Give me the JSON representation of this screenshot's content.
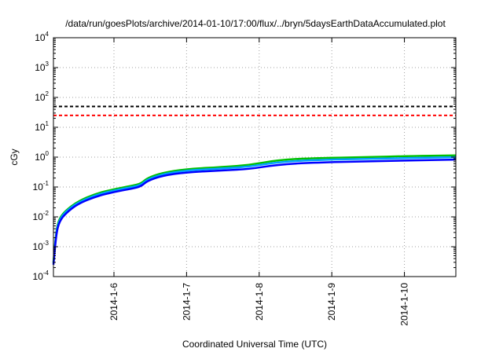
{
  "chart_data": {
    "type": "line",
    "title": "/data/run/goesPlots/archive/2014-01-10/17:00/flux/../bryn/5daysEarthDataAccumulated.plot",
    "xlabel": "Coordinated Universal Time (UTC)",
    "ylabel": "cGy",
    "x_axis": {
      "range": [
        "2014-01-05 04:00",
        "2014-01-10 17:00"
      ],
      "ticks": [
        "2014-1-6",
        "2014-1-7",
        "2014-1-8",
        "2014-1-9",
        "2014-1-10"
      ]
    },
    "y_axis": {
      "scale": "log",
      "range": [
        0.0001,
        10000
      ],
      "ticks": [
        {
          "base": "10",
          "exp": "-4",
          "value": 0.0001
        },
        {
          "base": "10",
          "exp": "-3",
          "value": 0.001
        },
        {
          "base": "10",
          "exp": "-2",
          "value": 0.01
        },
        {
          "base": "10",
          "exp": "-1",
          "value": 0.1
        },
        {
          "base": "10",
          "exp": "0",
          "value": 1
        },
        {
          "base": "10",
          "exp": "1",
          "value": 10
        },
        {
          "base": "10",
          "exp": "2",
          "value": 100
        },
        {
          "base": "10",
          "exp": "3",
          "value": 1000
        },
        {
          "base": "10",
          "exp": "4",
          "value": 10000
        }
      ]
    },
    "grid": true,
    "legend": "none",
    "reference_lines": [
      {
        "value": 50,
        "color": "#000000",
        "style": "dashed"
      },
      {
        "value": 25,
        "color": "#ff0000",
        "style": "dashed"
      }
    ],
    "series": [
      {
        "color": "#00c000",
        "points": [
          [
            "2014-01-05 04:00",
            0.0003
          ],
          [
            "2014-01-05 05:00",
            0.004
          ],
          [
            "2014-01-05 06:00",
            0.009
          ],
          [
            "2014-01-05 08:00",
            0.016
          ],
          [
            "2014-01-05 12:00",
            0.033
          ],
          [
            "2014-01-05 18:00",
            0.06
          ],
          [
            "2014-01-06 00:00",
            0.085
          ],
          [
            "2014-01-06 06:00",
            0.11
          ],
          [
            "2014-01-06 09:00",
            0.13
          ],
          [
            "2014-01-06 11:00",
            0.2
          ],
          [
            "2014-01-06 16:00",
            0.3
          ],
          [
            "2014-01-07 00:00",
            0.4
          ],
          [
            "2014-01-07 12:00",
            0.47
          ],
          [
            "2014-01-07 21:00",
            0.55
          ],
          [
            "2014-01-08 06:00",
            0.8
          ],
          [
            "2014-01-08 18:00",
            0.93
          ],
          [
            "2014-01-09 12:00",
            1.0
          ],
          [
            "2014-01-10 00:00",
            1.08
          ],
          [
            "2014-01-10 17:00",
            1.15
          ]
        ]
      },
      {
        "color": "#00a0ff",
        "points": [
          [
            "2014-01-05 04:00",
            0.00028
          ],
          [
            "2014-01-05 05:00",
            0.0035
          ],
          [
            "2014-01-05 06:00",
            0.008
          ],
          [
            "2014-01-05 08:00",
            0.015
          ],
          [
            "2014-01-05 12:00",
            0.03
          ],
          [
            "2014-01-05 18:00",
            0.054
          ],
          [
            "2014-01-06 00:00",
            0.077
          ],
          [
            "2014-01-06 06:00",
            0.1
          ],
          [
            "2014-01-06 09:00",
            0.118
          ],
          [
            "2014-01-06 11:00",
            0.18
          ],
          [
            "2014-01-06 16:00",
            0.27
          ],
          [
            "2014-01-07 00:00",
            0.36
          ],
          [
            "2014-01-07 12:00",
            0.42
          ],
          [
            "2014-01-07 21:00",
            0.48
          ],
          [
            "2014-01-08 06:00",
            0.68
          ],
          [
            "2014-01-08 18:00",
            0.8
          ],
          [
            "2014-01-09 12:00",
            0.88
          ],
          [
            "2014-01-10 00:00",
            0.93
          ],
          [
            "2014-01-10 17:00",
            1.0
          ]
        ]
      },
      {
        "color": "#0000ff",
        "points": [
          [
            "2014-01-05 04:00",
            0.00025
          ],
          [
            "2014-01-05 05:00",
            0.003
          ],
          [
            "2014-01-05 06:00",
            0.007
          ],
          [
            "2014-01-05 08:00",
            0.013
          ],
          [
            "2014-01-05 12:00",
            0.027
          ],
          [
            "2014-01-05 18:00",
            0.048
          ],
          [
            "2014-01-06 00:00",
            0.068
          ],
          [
            "2014-01-06 06:00",
            0.088
          ],
          [
            "2014-01-06 09:00",
            0.105
          ],
          [
            "2014-01-06 11:00",
            0.16
          ],
          [
            "2014-01-06 16:00",
            0.24
          ],
          [
            "2014-01-07 00:00",
            0.31
          ],
          [
            "2014-01-07 12:00",
            0.36
          ],
          [
            "2014-01-07 21:00",
            0.4
          ],
          [
            "2014-01-08 06:00",
            0.56
          ],
          [
            "2014-01-08 18:00",
            0.66
          ],
          [
            "2014-01-09 12:00",
            0.72
          ],
          [
            "2014-01-10 00:00",
            0.77
          ],
          [
            "2014-01-10 17:00",
            0.83
          ]
        ]
      }
    ]
  }
}
